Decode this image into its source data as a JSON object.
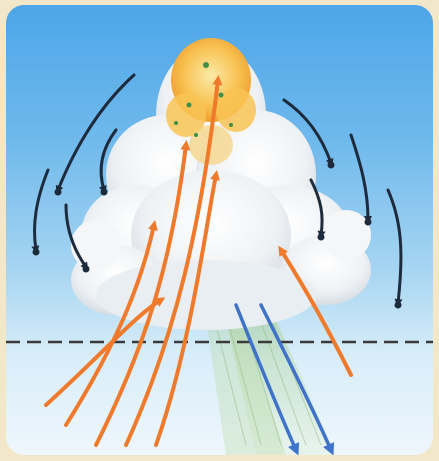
{
  "diagram": {
    "subject": "thunderstorm-convection-cell",
    "colors": {
      "updraft": "#f07a2c",
      "downdraft": "#3f73c9",
      "circulation": "#1d2b3c",
      "cloud": "#f2f4f6",
      "cloud_top": "#f6b73c",
      "sky_top": "#4da6e8",
      "sky_bottom": "#eef7fc",
      "frame": "#f3e7c9",
      "ground_line": "#3a3a3a"
    }
  }
}
